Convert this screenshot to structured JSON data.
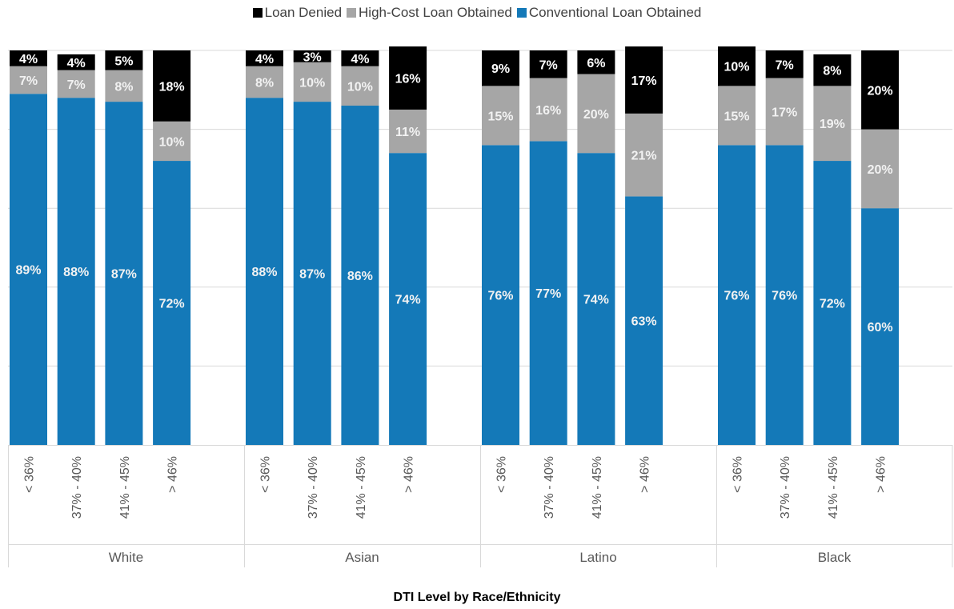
{
  "chart_data": {
    "type": "bar",
    "stacked": true,
    "xlabel": "DTI Level by Race/Ethnicity",
    "ylim": [
      0,
      100
    ],
    "y_unit": "%",
    "grid": true,
    "legend_position": "top",
    "groups": [
      {
        "name": "White",
        "categories": [
          "< 36%",
          "37% - 40%",
          "41% - 45%",
          "> 46%"
        ]
      },
      {
        "name": "Asian",
        "categories": [
          "< 36%",
          "37% - 40%",
          "41% - 45%",
          "> 46%"
        ]
      },
      {
        "name": "Latino",
        "categories": [
          "< 36%",
          "37% - 40%",
          "41% - 45%",
          "> 46%"
        ]
      },
      {
        "name": "Black",
        "categories": [
          "< 36%",
          "37% - 40%",
          "41% - 45%",
          "> 46%"
        ]
      }
    ],
    "series": [
      {
        "name": "Conventional Loan Obtained",
        "color": "#1479b8",
        "values": [
          89,
          88,
          87,
          72,
          88,
          87,
          86,
          74,
          76,
          77,
          74,
          63,
          76,
          76,
          72,
          60
        ],
        "labels": [
          "89%",
          "88%",
          "87%",
          "72%",
          "88%",
          "87%",
          "86%",
          "74%",
          "76%",
          "77%",
          "74%",
          "63%",
          "76%",
          "76%",
          "72%",
          "60%"
        ]
      },
      {
        "name": "High-Cost Loan Obtained",
        "color": "#a6a6a6",
        "values": [
          7,
          7,
          8,
          10,
          8,
          10,
          10,
          11,
          15,
          16,
          20,
          21,
          15,
          17,
          19,
          20
        ],
        "labels": [
          "7%",
          "7%",
          "8%",
          "10%",
          "8%",
          "10%",
          "10%",
          "11%",
          "15%",
          "16%",
          "20%",
          "21%",
          "15%",
          "17%",
          "19%",
          "20%"
        ]
      },
      {
        "name": "Loan Denied",
        "color": "#000000",
        "values": [
          4,
          4,
          5,
          18,
          4,
          3,
          4,
          16,
          9,
          7,
          6,
          17,
          10,
          7,
          8,
          20
        ],
        "labels": [
          "4%",
          "4%",
          "5%",
          "18%",
          "4%",
          "3%",
          "4%",
          "16%",
          "9%",
          "7%",
          "6%",
          "17%",
          "10%",
          "7%",
          "8%",
          "20%"
        ]
      }
    ],
    "legend_order": [
      "Loan Denied",
      "High-Cost Loan Obtained",
      "Conventional Loan Obtained"
    ]
  }
}
